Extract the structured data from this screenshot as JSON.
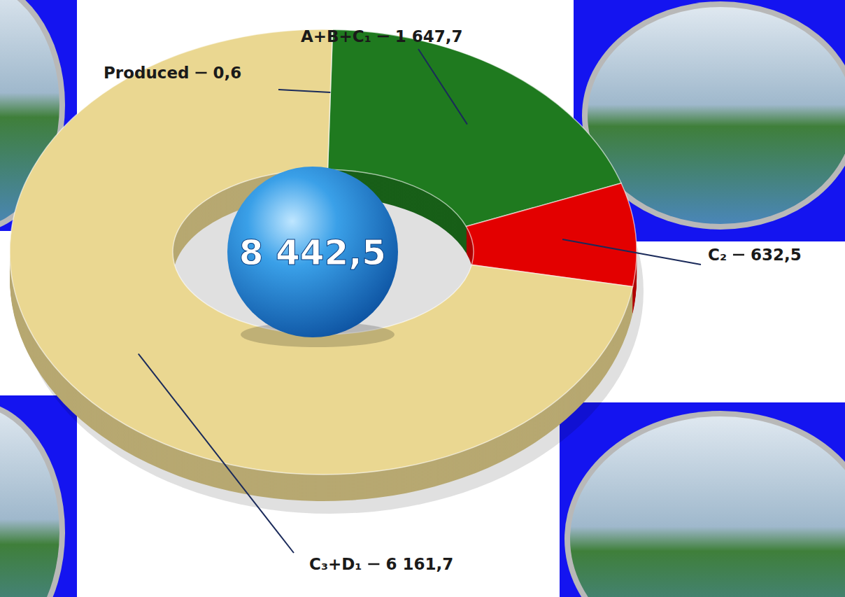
{
  "chart_data": {
    "type": "donut",
    "categories": [
      "Produced",
      "A+B+C₁",
      "C₂",
      "C₃+D₁"
    ],
    "values": [
      0.6,
      1647.7,
      632.5,
      6161.7
    ],
    "value_labels": [
      "0,6",
      "1 647,7",
      "632,5",
      "6 161,7"
    ],
    "colors": [
      "#2f8f2f",
      "#1f7a1f",
      "#e30000",
      "#ead791"
    ],
    "data_labels": true,
    "total": {
      "value": 8442.5,
      "label": "8 442,5"
    }
  }
}
